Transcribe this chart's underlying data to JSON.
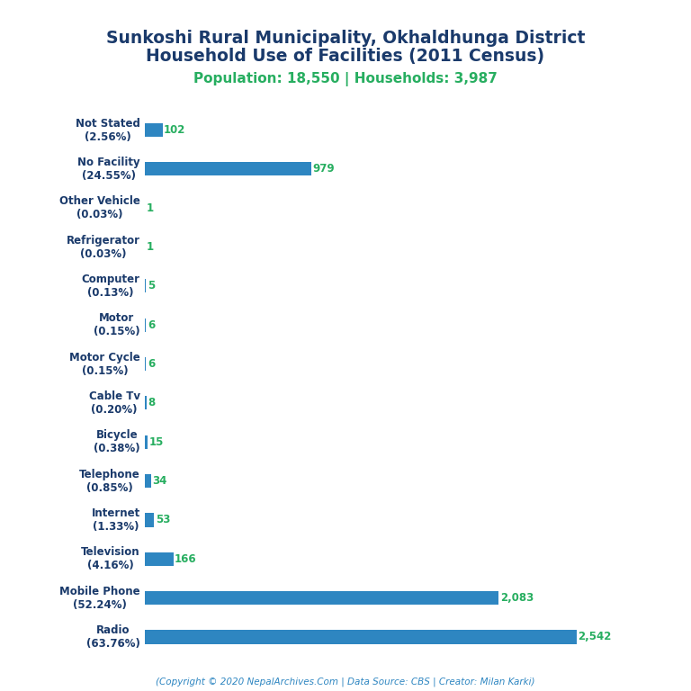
{
  "title_line1": "Sunkoshi Rural Municipality, Okhaldhunga District",
  "title_line2": "Household Use of Facilities (2011 Census)",
  "subtitle": "Population: 18,550 | Households: 3,987",
  "categories": [
    "Radio\n(63.76%)",
    "Mobile Phone\n(52.24%)",
    "Television\n(4.16%)",
    "Internet\n(1.33%)",
    "Telephone\n(0.85%)",
    "Bicycle\n(0.38%)",
    "Cable Tv\n(0.20%)",
    "Motor Cycle\n(0.15%)",
    "Motor\n(0.15%)",
    "Computer\n(0.13%)",
    "Refrigerator\n(0.03%)",
    "Other Vehicle\n(0.03%)",
    "No Facility\n(24.55%)",
    "Not Stated\n(2.56%)"
  ],
  "values": [
    2542,
    2083,
    166,
    53,
    34,
    15,
    8,
    6,
    6,
    5,
    1,
    1,
    979,
    102
  ],
  "value_labels": [
    "2,542",
    "2,083",
    "166",
    "53",
    "34",
    "15",
    "8",
    "6",
    "6",
    "5",
    "1",
    "1",
    "979",
    "102"
  ],
  "bar_color": "#2e86c1",
  "value_color": "#27ae60",
  "title_color": "#1a3a6b",
  "subtitle_color": "#27ae60",
  "footer_text": "(Copyright © 2020 NepalArchives.Com | Data Source: CBS | Creator: Milan Karki)",
  "footer_color": "#2e86c1",
  "background_color": "#ffffff",
  "title_fontsize": 13.5,
  "subtitle_fontsize": 11,
  "label_fontsize": 8.5,
  "value_fontsize": 8.5,
  "footer_fontsize": 7.5
}
